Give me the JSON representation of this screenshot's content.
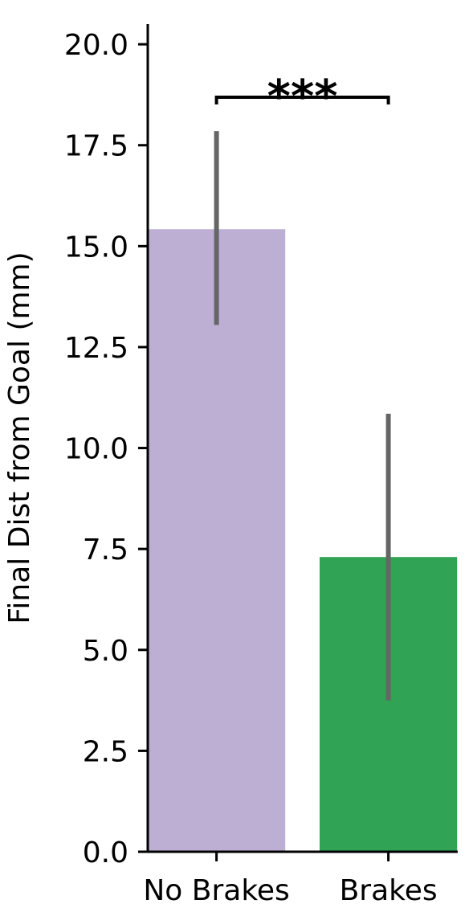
{
  "chart_data": {
    "type": "bar",
    "y_label": "Final Dist from Goal (mm)",
    "categories": [
      "No Brakes",
      "Brakes"
    ],
    "values": [
      15.42,
      7.3
    ],
    "ci": [
      [
        13.05,
        17.85
      ],
      [
        3.75,
        10.85
      ]
    ],
    "colors": [
      "#bdaed4",
      "#31a354"
    ],
    "error_color": "#666666",
    "ylim": [
      0,
      20.5
    ],
    "yticks": [
      {
        "value": 0,
        "label": "0.0"
      },
      {
        "value": 2.5,
        "label": "2.5"
      },
      {
        "value": 5,
        "label": "5.0"
      },
      {
        "value": 7.5,
        "label": "7.5"
      },
      {
        "value": 10,
        "label": "10.0"
      },
      {
        "value": 12.5,
        "label": "12.5"
      },
      {
        "value": 15,
        "label": "15.0"
      },
      {
        "value": 17.5,
        "label": "17.5"
      },
      {
        "value": 20,
        "label": "20.0"
      }
    ],
    "annotation": "***",
    "grid": false
  }
}
